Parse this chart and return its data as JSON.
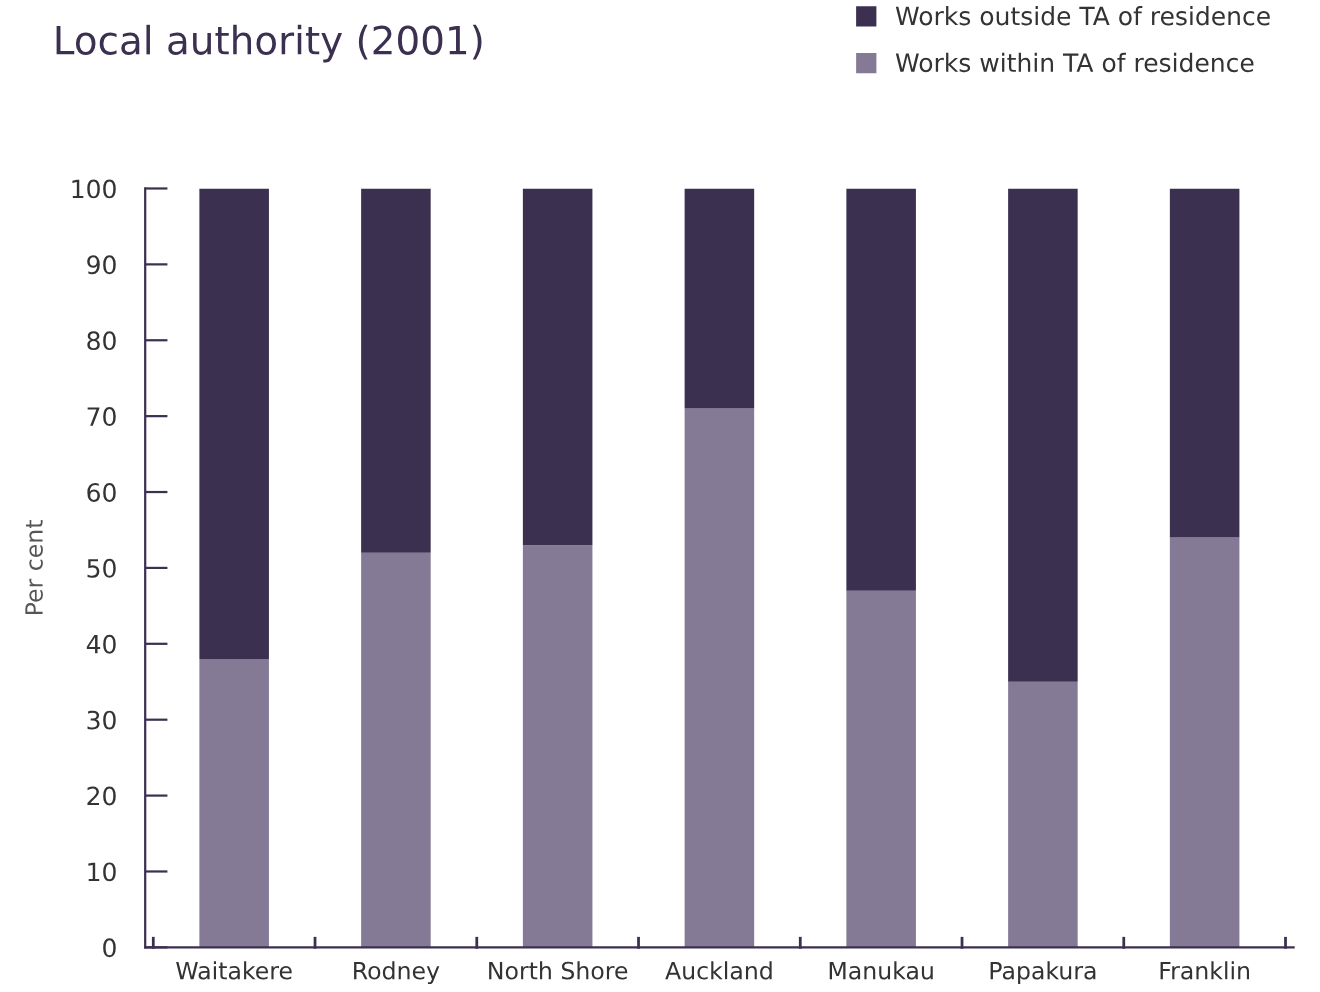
{
  "chart_data": {
    "type": "bar",
    "title": "Local authority (2001)",
    "ylabel": "Per cent",
    "stacked": true,
    "categories": [
      "Waitakere",
      "Rodney",
      "North Shore",
      "Auckland",
      "Manukau",
      "Papakura",
      "Franklin"
    ],
    "series": [
      {
        "name": "Works within TA of residence",
        "color": "#857a96",
        "values": [
          38,
          52,
          53,
          71,
          47,
          35,
          54
        ]
      },
      {
        "name": "Works outside TA of residence",
        "color": "#3b3050",
        "values": [
          62,
          48,
          47,
          29,
          53,
          65,
          46
        ]
      }
    ],
    "ylim": [
      0,
      100
    ],
    "yticks": [
      0,
      10,
      20,
      30,
      40,
      50,
      60,
      70,
      80,
      90,
      100
    ],
    "grid": false,
    "legend": "top right"
  }
}
